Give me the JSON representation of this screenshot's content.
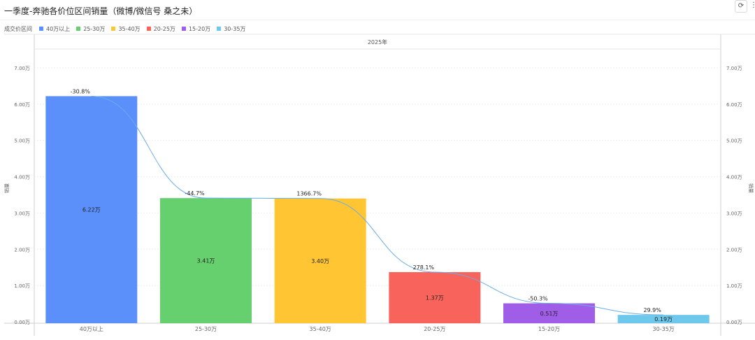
{
  "title": "一季度-奔驰各价位区间销量（微博/微信号 桑之未）",
  "toolbar": {
    "refresh_icon": "refresh-icon",
    "more_icon": "more-vertical-icon"
  },
  "legend": {
    "title": "成交价区间",
    "items": [
      {
        "label": "40万以上",
        "color": "#5b8ff9"
      },
      {
        "label": "25-30万",
        "color": "#66cf6e"
      },
      {
        "label": "35-40万",
        "color": "#ffc533"
      },
      {
        "label": "20-25万",
        "color": "#f8645b"
      },
      {
        "label": "15-20万",
        "color": "#a05ee8"
      },
      {
        "label": "30-35万",
        "color": "#6dc8ec"
      }
    ]
  },
  "chart_data": {
    "type": "bar",
    "facet_label": "2025年",
    "categories": [
      "40万以上",
      "25-30万",
      "35-40万",
      "20-25万",
      "15-20万",
      "30-35万"
    ],
    "values": [
      6.22,
      3.41,
      3.4,
      1.37,
      0.51,
      0.19
    ],
    "value_labels": [
      "6.22万",
      "3.41万",
      "3.40万",
      "1.37万",
      "0.51万",
      "0.19万"
    ],
    "growth_labels": [
      "-30.8%",
      "-44.7%",
      "1366.7%",
      "278.1%",
      "-50.3%",
      "29.9%"
    ],
    "colors": [
      "#5b8ff9",
      "#66cf6e",
      "#ffc533",
      "#f8645b",
      "#a05ee8",
      "#6dc8ec"
    ],
    "ylabel": "销量",
    "y2label": "销量",
    "ylim": [
      0,
      7
    ],
    "yticks": [
      "0.00万",
      "1.00万",
      "2.00万",
      "3.00万",
      "4.00万",
      "5.00万",
      "6.00万",
      "7.00万"
    ],
    "grid": true,
    "line_color": "#6aaee8",
    "legend_position": "top-left"
  }
}
